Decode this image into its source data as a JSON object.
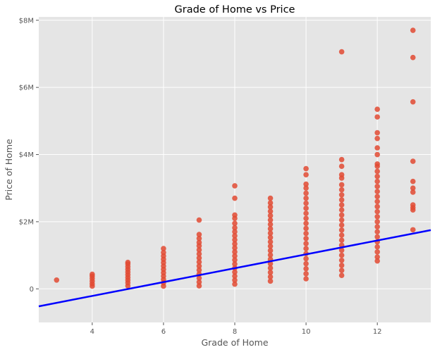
{
  "chart_data": {
    "type": "scatter",
    "title": "Grade of Home vs Price",
    "xlabel": "Grade of Home",
    "ylabel": "Price of Home",
    "xlim": [
      2.5,
      13.5
    ],
    "ylim": [
      -1000000,
      8100000
    ],
    "xticks": [
      4,
      6,
      8,
      10,
      12
    ],
    "xtick_labels": [
      "4",
      "6",
      "8",
      "10",
      "12"
    ],
    "yticks": [
      0,
      2000000,
      4000000,
      6000000,
      8000000
    ],
    "ytick_labels": [
      "0",
      "$2M",
      "$4M",
      "$6M",
      "$8M"
    ],
    "grid": true,
    "colors": {
      "points": "#e24a33",
      "fit_line": "#0000ff",
      "plot_bg": "#e5e5e5",
      "grid": "#ffffff"
    },
    "series": [
      {
        "name": "homes",
        "style": "points",
        "points": [
          [
            3,
            262000
          ],
          [
            4,
            80000
          ],
          [
            4,
            150000
          ],
          [
            4,
            230000
          ],
          [
            4,
            310000
          ],
          [
            4,
            380000
          ],
          [
            4,
            435000
          ],
          [
            5,
            90000
          ],
          [
            5,
            180000
          ],
          [
            5,
            260000
          ],
          [
            5,
            340000
          ],
          [
            5,
            420000
          ],
          [
            5,
            500000
          ],
          [
            5,
            580000
          ],
          [
            5,
            660000
          ],
          [
            5,
            740000
          ],
          [
            5,
            790000
          ],
          [
            6,
            80000
          ],
          [
            6,
            180000
          ],
          [
            6,
            280000
          ],
          [
            6,
            380000
          ],
          [
            6,
            480000
          ],
          [
            6,
            580000
          ],
          [
            6,
            680000
          ],
          [
            6,
            780000
          ],
          [
            6,
            880000
          ],
          [
            6,
            980000
          ],
          [
            6,
            1080000
          ],
          [
            6,
            1200000
          ],
          [
            7,
            90000
          ],
          [
            7,
            200000
          ],
          [
            7,
            320000
          ],
          [
            7,
            440000
          ],
          [
            7,
            560000
          ],
          [
            7,
            680000
          ],
          [
            7,
            800000
          ],
          [
            7,
            920000
          ],
          [
            7,
            1040000
          ],
          [
            7,
            1160000
          ],
          [
            7,
            1280000
          ],
          [
            7,
            1380000
          ],
          [
            7,
            1500000
          ],
          [
            7,
            1620000
          ],
          [
            7,
            2050000
          ],
          [
            8,
            140000
          ],
          [
            8,
            260000
          ],
          [
            8,
            380000
          ],
          [
            8,
            500000
          ],
          [
            8,
            620000
          ],
          [
            8,
            740000
          ],
          [
            8,
            860000
          ],
          [
            8,
            980000
          ],
          [
            8,
            1100000
          ],
          [
            8,
            1220000
          ],
          [
            8,
            1340000
          ],
          [
            8,
            1460000
          ],
          [
            8,
            1580000
          ],
          [
            8,
            1700000
          ],
          [
            8,
            1820000
          ],
          [
            8,
            1950000
          ],
          [
            8,
            2100000
          ],
          [
            8,
            2200000
          ],
          [
            8,
            2700000
          ],
          [
            8,
            3070000
          ],
          [
            9,
            230000
          ],
          [
            9,
            360000
          ],
          [
            9,
            490000
          ],
          [
            9,
            620000
          ],
          [
            9,
            750000
          ],
          [
            9,
            880000
          ],
          [
            9,
            1010000
          ],
          [
            9,
            1140000
          ],
          [
            9,
            1270000
          ],
          [
            9,
            1400000
          ],
          [
            9,
            1530000
          ],
          [
            9,
            1660000
          ],
          [
            9,
            1790000
          ],
          [
            9,
            1920000
          ],
          [
            9,
            2050000
          ],
          [
            9,
            2180000
          ],
          [
            9,
            2310000
          ],
          [
            9,
            2440000
          ],
          [
            9,
            2560000
          ],
          [
            9,
            2700000
          ],
          [
            10,
            300000
          ],
          [
            10,
            450000
          ],
          [
            10,
            600000
          ],
          [
            10,
            750000
          ],
          [
            10,
            900000
          ],
          [
            10,
            1050000
          ],
          [
            10,
            1200000
          ],
          [
            10,
            1350000
          ],
          [
            10,
            1500000
          ],
          [
            10,
            1650000
          ],
          [
            10,
            1800000
          ],
          [
            10,
            1950000
          ],
          [
            10,
            2100000
          ],
          [
            10,
            2250000
          ],
          [
            10,
            2400000
          ],
          [
            10,
            2550000
          ],
          [
            10,
            2700000
          ],
          [
            10,
            2850000
          ],
          [
            10,
            3000000
          ],
          [
            10,
            3120000
          ],
          [
            10,
            3400000
          ],
          [
            10,
            3580000
          ],
          [
            11,
            400000
          ],
          [
            11,
            550000
          ],
          [
            11,
            700000
          ],
          [
            11,
            850000
          ],
          [
            11,
            1000000
          ],
          [
            11,
            1150000
          ],
          [
            11,
            1300000
          ],
          [
            11,
            1450000
          ],
          [
            11,
            1600000
          ],
          [
            11,
            1750000
          ],
          [
            11,
            1900000
          ],
          [
            11,
            2050000
          ],
          [
            11,
            2200000
          ],
          [
            11,
            2350000
          ],
          [
            11,
            2500000
          ],
          [
            11,
            2650000
          ],
          [
            11,
            2800000
          ],
          [
            11,
            2950000
          ],
          [
            11,
            3100000
          ],
          [
            11,
            3300000
          ],
          [
            11,
            3400000
          ],
          [
            11,
            3650000
          ],
          [
            11,
            3850000
          ],
          [
            11,
            7060000
          ],
          [
            12,
            830000
          ],
          [
            12,
            950000
          ],
          [
            12,
            1100000
          ],
          [
            12,
            1250000
          ],
          [
            12,
            1400000
          ],
          [
            12,
            1550000
          ],
          [
            12,
            1700000
          ],
          [
            12,
            1850000
          ],
          [
            12,
            2000000
          ],
          [
            12,
            2150000
          ],
          [
            12,
            2300000
          ],
          [
            12,
            2450000
          ],
          [
            12,
            2600000
          ],
          [
            12,
            2750000
          ],
          [
            12,
            2900000
          ],
          [
            12,
            3050000
          ],
          [
            12,
            3200000
          ],
          [
            12,
            3350000
          ],
          [
            12,
            3500000
          ],
          [
            12,
            3650000
          ],
          [
            12,
            3720000
          ],
          [
            12,
            4000000
          ],
          [
            12,
            4200000
          ],
          [
            12,
            4480000
          ],
          [
            12,
            4650000
          ],
          [
            12,
            5120000
          ],
          [
            12,
            5350000
          ],
          [
            13,
            1760000
          ],
          [
            13,
            2350000
          ],
          [
            13,
            2420000
          ],
          [
            13,
            2500000
          ],
          [
            13,
            2880000
          ],
          [
            13,
            3000000
          ],
          [
            13,
            3200000
          ],
          [
            13,
            3800000
          ],
          [
            13,
            5570000
          ],
          [
            13,
            6890000
          ],
          [
            13,
            7700000
          ]
        ]
      },
      {
        "name": "fit",
        "style": "line",
        "points": [
          [
            2.5,
            -520000
          ],
          [
            13.5,
            1750000
          ]
        ]
      }
    ]
  }
}
